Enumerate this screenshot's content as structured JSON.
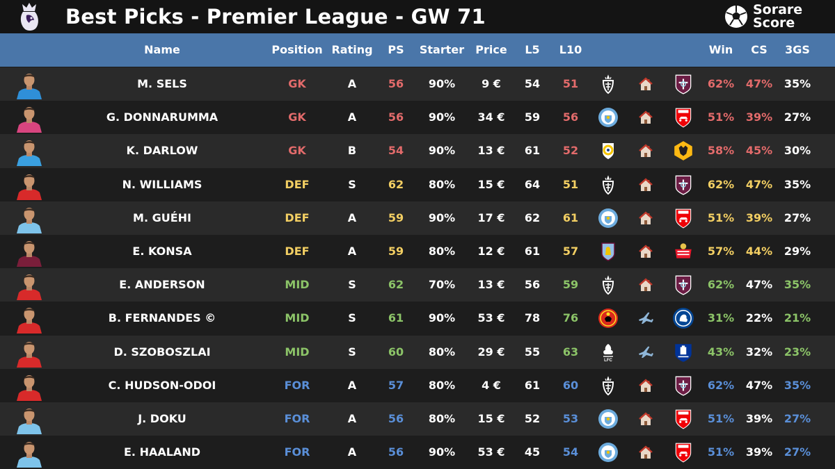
{
  "header": {
    "title": "Best Picks - Premier League - GW 71",
    "brand_line1": "Sorare",
    "brand_line2": "Score"
  },
  "columns": {
    "name": "Name",
    "position": "Position",
    "rating": "Rating",
    "ps": "PS",
    "starter": "Starter",
    "price": "Price",
    "l5": "L5",
    "l10": "L10",
    "win": "Win",
    "cs": "CS",
    "gs3": "3GS"
  },
  "colors": {
    "header_bg": "#4a76a9",
    "gk": "#e36b6b",
    "def": "#f3cf63",
    "mid": "#8cc468",
    "for": "#5a8fd8",
    "white": "#ffffff"
  },
  "players": [
    {
      "name": "M. SELS",
      "position": "GK",
      "rating": "A",
      "ps": "56",
      "starter": "90%",
      "price": "9 €",
      "l5": "54",
      "l10": "51",
      "club": "nottingham-forest-crest",
      "venue": "home-icon",
      "opponent": "burnley-crest",
      "win": "62%",
      "cs": "47%",
      "gs3": "35%",
      "shirt": "#2f8fd8",
      "hl": {
        "ps": "gk",
        "l10": "gk",
        "win": "gk",
        "cs": "gk",
        "gs3": "white"
      }
    },
    {
      "name": "G. DONNARUMMA",
      "position": "GK",
      "rating": "A",
      "ps": "56",
      "starter": "90%",
      "price": "34 €",
      "l5": "59",
      "l10": "56",
      "club": "manchester-city-crest",
      "venue": "home-icon",
      "opponent": "arsenal-crest",
      "win": "51%",
      "cs": "39%",
      "gs3": "27%",
      "shirt": "#d8457f",
      "hl": {
        "ps": "gk",
        "l10": "gk",
        "win": "gk",
        "cs": "gk",
        "gs3": "white"
      }
    },
    {
      "name": "K. DARLOW",
      "position": "GK",
      "rating": "B",
      "ps": "54",
      "starter": "90%",
      "price": "13 €",
      "l5": "61",
      "l10": "52",
      "club": "leeds-united-crest",
      "venue": "home-icon",
      "opponent": "wolves-crest",
      "win": "58%",
      "cs": "45%",
      "gs3": "30%",
      "shirt": "#3aa0e0",
      "hl": {
        "ps": "gk",
        "l10": "gk",
        "win": "gk",
        "cs": "gk",
        "gs3": "white"
      }
    },
    {
      "name": "N. WILLIAMS",
      "position": "DEF",
      "rating": "S",
      "ps": "62",
      "starter": "80%",
      "price": "15 €",
      "l5": "64",
      "l10": "51",
      "club": "nottingham-forest-crest",
      "venue": "home-icon",
      "opponent": "burnley-crest",
      "win": "62%",
      "cs": "47%",
      "gs3": "35%",
      "shirt": "#d82a2a",
      "hl": {
        "ps": "def",
        "l10": "def",
        "win": "def",
        "cs": "def",
        "gs3": "white"
      }
    },
    {
      "name": "M. GUÉHI",
      "position": "DEF",
      "rating": "A",
      "ps": "59",
      "starter": "90%",
      "price": "17 €",
      "l5": "62",
      "l10": "61",
      "club": "manchester-city-crest",
      "venue": "home-icon",
      "opponent": "arsenal-crest",
      "win": "51%",
      "cs": "39%",
      "gs3": "27%",
      "shirt": "#7ec3ea",
      "hl": {
        "ps": "def",
        "l10": "def",
        "win": "def",
        "cs": "def",
        "gs3": "white"
      }
    },
    {
      "name": "E. KONSA",
      "position": "DEF",
      "rating": "A",
      "ps": "59",
      "starter": "80%",
      "price": "12 €",
      "l5": "61",
      "l10": "57",
      "club": "aston-villa-crest",
      "venue": "home-icon",
      "opponent": "sunderland-crest",
      "win": "57%",
      "cs": "44%",
      "gs3": "29%",
      "shirt": "#7a1e3a",
      "hl": {
        "ps": "def",
        "l10": "def",
        "win": "def",
        "cs": "def",
        "gs3": "white"
      }
    },
    {
      "name": "E. ANDERSON",
      "position": "MID",
      "rating": "S",
      "ps": "62",
      "starter": "70%",
      "price": "13 €",
      "l5": "56",
      "l10": "59",
      "club": "nottingham-forest-crest",
      "venue": "home-icon",
      "opponent": "burnley-crest",
      "win": "62%",
      "cs": "47%",
      "gs3": "35%",
      "shirt": "#d82a2a",
      "hl": {
        "ps": "mid",
        "l10": "mid",
        "win": "mid",
        "cs": "white",
        "gs3": "mid"
      }
    },
    {
      "name": "B. FERNANDES ©",
      "position": "MID",
      "rating": "S",
      "ps": "61",
      "starter": "90%",
      "price": "53 €",
      "l5": "78",
      "l10": "76",
      "club": "manchester-united-crest",
      "venue": "away-plane-icon",
      "opponent": "chelsea-crest",
      "win": "31%",
      "cs": "22%",
      "gs3": "21%",
      "shirt": "#d82a2a",
      "hl": {
        "ps": "mid",
        "l10": "mid",
        "win": "mid",
        "cs": "white",
        "gs3": "mid"
      }
    },
    {
      "name": "D. SZOBOSZLAI",
      "position": "MID",
      "rating": "S",
      "ps": "60",
      "starter": "80%",
      "price": "29 €",
      "l5": "55",
      "l10": "63",
      "club": "liverpool-crest",
      "venue": "away-plane-icon",
      "opponent": "everton-crest",
      "win": "43%",
      "cs": "32%",
      "gs3": "23%",
      "shirt": "#d82a2a",
      "hl": {
        "ps": "mid",
        "l10": "mid",
        "win": "mid",
        "cs": "white",
        "gs3": "mid"
      }
    },
    {
      "name": "C. HUDSON-ODOI",
      "position": "FOR",
      "rating": "A",
      "ps": "57",
      "starter": "80%",
      "price": "4 €",
      "l5": "61",
      "l10": "60",
      "club": "nottingham-forest-crest",
      "venue": "home-icon",
      "opponent": "burnley-crest",
      "win": "62%",
      "cs": "47%",
      "gs3": "35%",
      "shirt": "#d82a2a",
      "hl": {
        "ps": "for",
        "l10": "for",
        "win": "for",
        "cs": "white",
        "gs3": "for"
      }
    },
    {
      "name": "J. DOKU",
      "position": "FOR",
      "rating": "A",
      "ps": "56",
      "starter": "80%",
      "price": "15 €",
      "l5": "52",
      "l10": "53",
      "club": "manchester-city-crest",
      "venue": "home-icon",
      "opponent": "arsenal-crest",
      "win": "51%",
      "cs": "39%",
      "gs3": "27%",
      "shirt": "#7ec3ea",
      "hl": {
        "ps": "for",
        "l10": "for",
        "win": "for",
        "cs": "white",
        "gs3": "for"
      }
    },
    {
      "name": "E. HAALAND",
      "position": "FOR",
      "rating": "A",
      "ps": "56",
      "starter": "90%",
      "price": "53 €",
      "l5": "45",
      "l10": "54",
      "club": "manchester-city-crest",
      "venue": "home-icon",
      "opponent": "arsenal-crest",
      "win": "51%",
      "cs": "39%",
      "gs3": "27%",
      "shirt": "#7ec3ea",
      "hl": {
        "ps": "for",
        "l10": "for",
        "win": "for",
        "cs": "white",
        "gs3": "for"
      }
    }
  ]
}
